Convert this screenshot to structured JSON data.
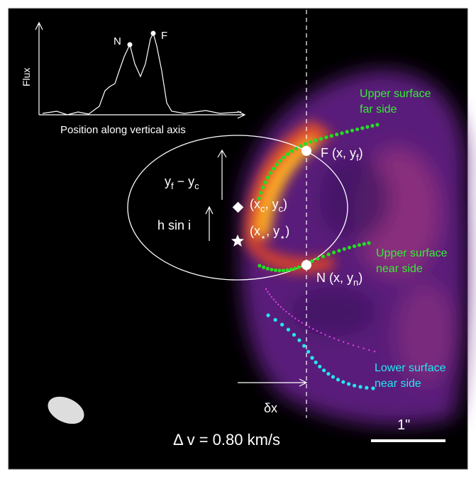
{
  "inset": {
    "peak_n": "N",
    "peak_f": "F",
    "y_label": "Flux",
    "x_label": "Position along vertical axis"
  },
  "labels": {
    "upper_far": [
      "Upper surface",
      "far side"
    ],
    "upper_near": [
      "Upper surface",
      "near side"
    ],
    "lower_near": [
      "Lower surface",
      "near side"
    ],
    "point_f": [
      "F",
      "(x, y",
      "f",
      ")"
    ],
    "point_n": [
      "N",
      "(x, y",
      "n",
      ")"
    ],
    "height_diff": [
      "y",
      "f",
      " − y",
      "c"
    ],
    "center": [
      "(x",
      "c",
      ", y",
      "c",
      ")"
    ],
    "star": [
      "(x",
      "⋆",
      ", y",
      "⋆",
      ")"
    ],
    "h_sin_i": "h sin i",
    "offset": "δx",
    "velocity": "Δ v = 0.80 km/s",
    "scale": "1\""
  }
}
